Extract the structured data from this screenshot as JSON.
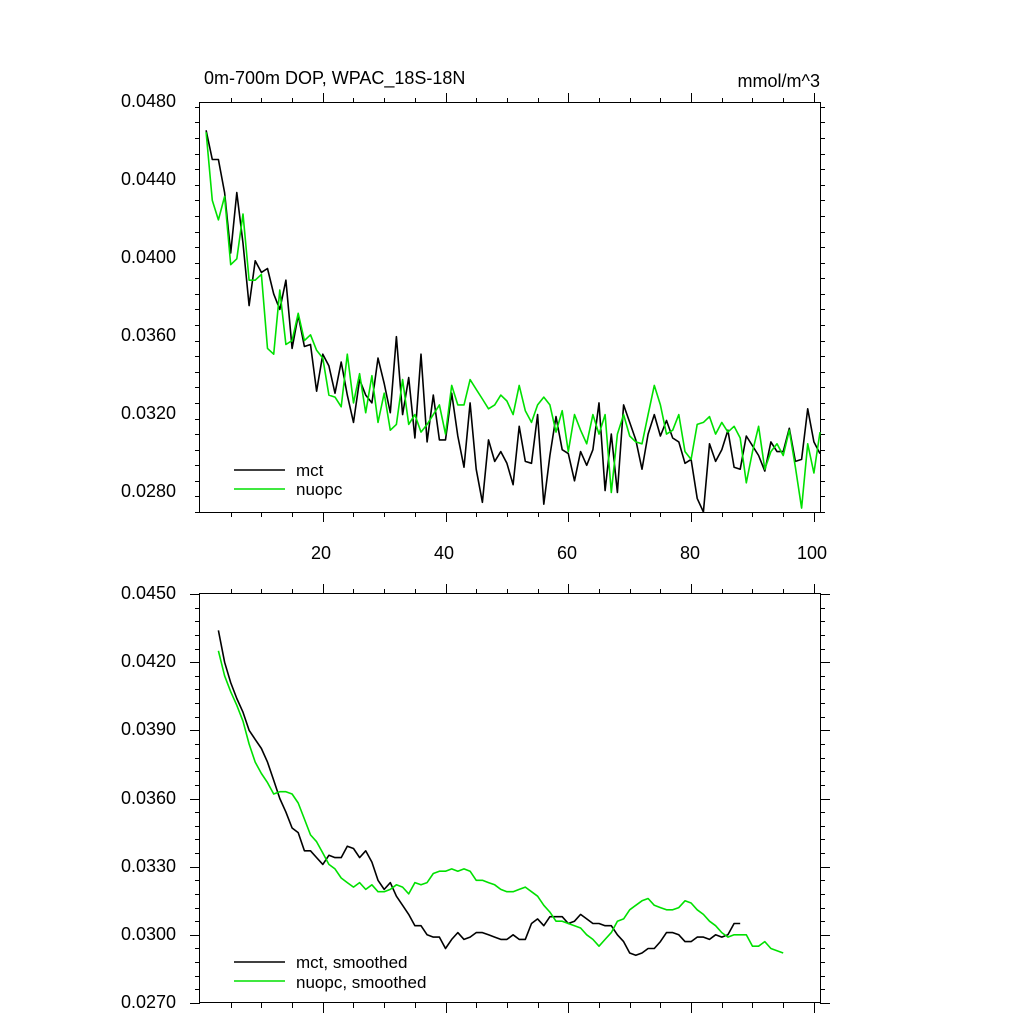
{
  "chart_data": [
    {
      "type": "line",
      "title": "0m-700m DOP, WPAC_18S-18N",
      "units": "mmol/m^3",
      "xlim": [
        0,
        101
      ],
      "ylim": [
        0.027,
        0.048
      ],
      "x_ticks": [
        20,
        40,
        60,
        80,
        100
      ],
      "y_ticks": [
        "0.0280",
        "0.0320",
        "0.0360",
        "0.0400",
        "0.0440",
        "0.0480"
      ],
      "grid": false,
      "legend_position": "bottom-left",
      "series": [
        {
          "name": "mct",
          "color": "#000000",
          "x_start": 1,
          "values": [
            0.0466,
            0.0451,
            0.0451,
            0.0434,
            0.0403,
            0.0434,
            0.0408,
            0.0376,
            0.0399,
            0.0393,
            0.0395,
            0.0382,
            0.0374,
            0.0389,
            0.0354,
            0.0371,
            0.0355,
            0.0356,
            0.0332,
            0.0351,
            0.0345,
            0.0331,
            0.0347,
            0.033,
            0.0316,
            0.0338,
            0.033,
            0.0326,
            0.0349,
            0.0336,
            0.0321,
            0.036,
            0.032,
            0.0339,
            0.0308,
            0.0351,
            0.0306,
            0.033,
            0.0307,
            0.0307,
            0.0331,
            0.0309,
            0.0293,
            0.0326,
            0.0292,
            0.0275,
            0.0307,
            0.0296,
            0.0301,
            0.0295,
            0.0284,
            0.0314,
            0.0296,
            0.0295,
            0.032,
            0.0274,
            0.0299,
            0.0319,
            0.0302,
            0.03,
            0.0286,
            0.0301,
            0.0294,
            0.0302,
            0.0326,
            0.0281,
            0.031,
            0.028,
            0.0325,
            0.0316,
            0.0307,
            0.0292,
            0.031,
            0.032,
            0.0309,
            0.0317,
            0.0308,
            0.0306,
            0.0295,
            0.0297,
            0.0277,
            0.027,
            0.0305,
            0.0296,
            0.0302,
            0.0312,
            0.0293,
            0.0292,
            0.0309,
            0.0304,
            0.0299,
            0.0291,
            0.0306,
            0.0301,
            0.0301,
            0.0313,
            0.0296,
            0.0297,
            0.0323,
            0.0306,
            0.03
          ]
        },
        {
          "name": "nuopc",
          "color": "#00e000",
          "x_start": 1,
          "values": [
            0.0465,
            0.043,
            0.042,
            0.0432,
            0.0397,
            0.04,
            0.0423,
            0.0389,
            0.0389,
            0.0392,
            0.0354,
            0.0351,
            0.0384,
            0.0356,
            0.0358,
            0.0372,
            0.0358,
            0.0361,
            0.0353,
            0.0349,
            0.033,
            0.0329,
            0.0324,
            0.0351,
            0.0326,
            0.0341,
            0.0321,
            0.034,
            0.0316,
            0.0331,
            0.0312,
            0.0315,
            0.0338,
            0.0315,
            0.032,
            0.0311,
            0.0315,
            0.032,
            0.0325,
            0.031,
            0.0335,
            0.0325,
            0.0325,
            0.0338,
            0.0333,
            0.0328,
            0.0323,
            0.0325,
            0.033,
            0.0327,
            0.032,
            0.0335,
            0.0322,
            0.0316,
            0.0325,
            0.0329,
            0.0325,
            0.0311,
            0.0322,
            0.0301,
            0.032,
            0.0312,
            0.0305,
            0.032,
            0.031,
            0.032,
            0.028,
            0.031,
            0.032,
            0.0309,
            0.0306,
            0.0305,
            0.032,
            0.0335,
            0.0325,
            0.031,
            0.0312,
            0.032,
            0.0301,
            0.0297,
            0.0315,
            0.0316,
            0.0319,
            0.031,
            0.0316,
            0.0311,
            0.0314,
            0.0308,
            0.0285,
            0.0301,
            0.0314,
            0.0292,
            0.0301,
            0.0305,
            0.0299,
            0.0312,
            0.0293,
            0.0272,
            0.0305,
            0.029,
            0.0311
          ]
        }
      ]
    },
    {
      "type": "line",
      "xlim": [
        0,
        101
      ],
      "ylim": [
        0.027,
        0.045
      ],
      "x_ticks": [
        20,
        40,
        60,
        80,
        100
      ],
      "x_tick_labels_visible": false,
      "y_ticks": [
        "0.0270",
        "0.0300",
        "0.0330",
        "0.0360",
        "0.0390",
        "0.0420",
        "0.0450"
      ],
      "grid": false,
      "legend_position": "bottom-left",
      "series": [
        {
          "name": "mct, smoothed",
          "color": "#000000",
          "x_start": 3,
          "values": [
            0.0434,
            0.042,
            0.0411,
            0.0404,
            0.0398,
            0.039,
            0.0386,
            0.0382,
            0.0376,
            0.0368,
            0.036,
            0.0354,
            0.0347,
            0.0345,
            0.0337,
            0.0337,
            0.0334,
            0.0331,
            0.0335,
            0.0334,
            0.0334,
            0.0339,
            0.0338,
            0.0334,
            0.0337,
            0.0332,
            0.0324,
            0.032,
            0.0323,
            0.0317,
            0.0313,
            0.0309,
            0.0304,
            0.0304,
            0.03,
            0.0299,
            0.0299,
            0.0294,
            0.0298,
            0.0301,
            0.0298,
            0.0299,
            0.0301,
            0.0301,
            0.03,
            0.0299,
            0.0298,
            0.0298,
            0.03,
            0.0298,
            0.0298,
            0.0305,
            0.0307,
            0.0304,
            0.0308,
            0.0308,
            0.0308,
            0.0305,
            0.0306,
            0.0309,
            0.0307,
            0.0305,
            0.0305,
            0.0304,
            0.0304,
            0.03,
            0.0297,
            0.0292,
            0.0291,
            0.0292,
            0.0294,
            0.0294,
            0.0297,
            0.0301,
            0.0301,
            0.03,
            0.0297,
            0.0297,
            0.0299,
            0.0299,
            0.0298,
            0.03,
            0.0299,
            0.03,
            0.0305,
            0.0305
          ]
        },
        {
          "name": "nuopc, smoothed",
          "color": "#00e000",
          "x_start": 3,
          "values": [
            0.0425,
            0.0414,
            0.0407,
            0.0401,
            0.0394,
            0.0384,
            0.0376,
            0.0371,
            0.0367,
            0.0362,
            0.0363,
            0.0363,
            0.0362,
            0.0358,
            0.0351,
            0.0344,
            0.0341,
            0.0336,
            0.0331,
            0.0329,
            0.0325,
            0.0323,
            0.0321,
            0.0323,
            0.032,
            0.0322,
            0.0319,
            0.0319,
            0.032,
            0.0322,
            0.0321,
            0.0318,
            0.0323,
            0.0322,
            0.0323,
            0.0327,
            0.0328,
            0.0328,
            0.0329,
            0.0328,
            0.0329,
            0.0328,
            0.0324,
            0.0324,
            0.0323,
            0.0322,
            0.032,
            0.0319,
            0.0319,
            0.032,
            0.0321,
            0.0319,
            0.0317,
            0.0313,
            0.031,
            0.0306,
            0.0306,
            0.0305,
            0.0304,
            0.0303,
            0.03,
            0.0298,
            0.0295,
            0.0298,
            0.0301,
            0.0306,
            0.0307,
            0.0311,
            0.0313,
            0.0315,
            0.0316,
            0.0313,
            0.0312,
            0.0311,
            0.0311,
            0.0312,
            0.0315,
            0.0314,
            0.0311,
            0.0309,
            0.0306,
            0.0304,
            0.0301,
            0.0299,
            0.03,
            0.03,
            0.03,
            0.0295,
            0.0295,
            0.0297,
            0.0294,
            0.0293,
            0.0292
          ]
        }
      ]
    }
  ]
}
